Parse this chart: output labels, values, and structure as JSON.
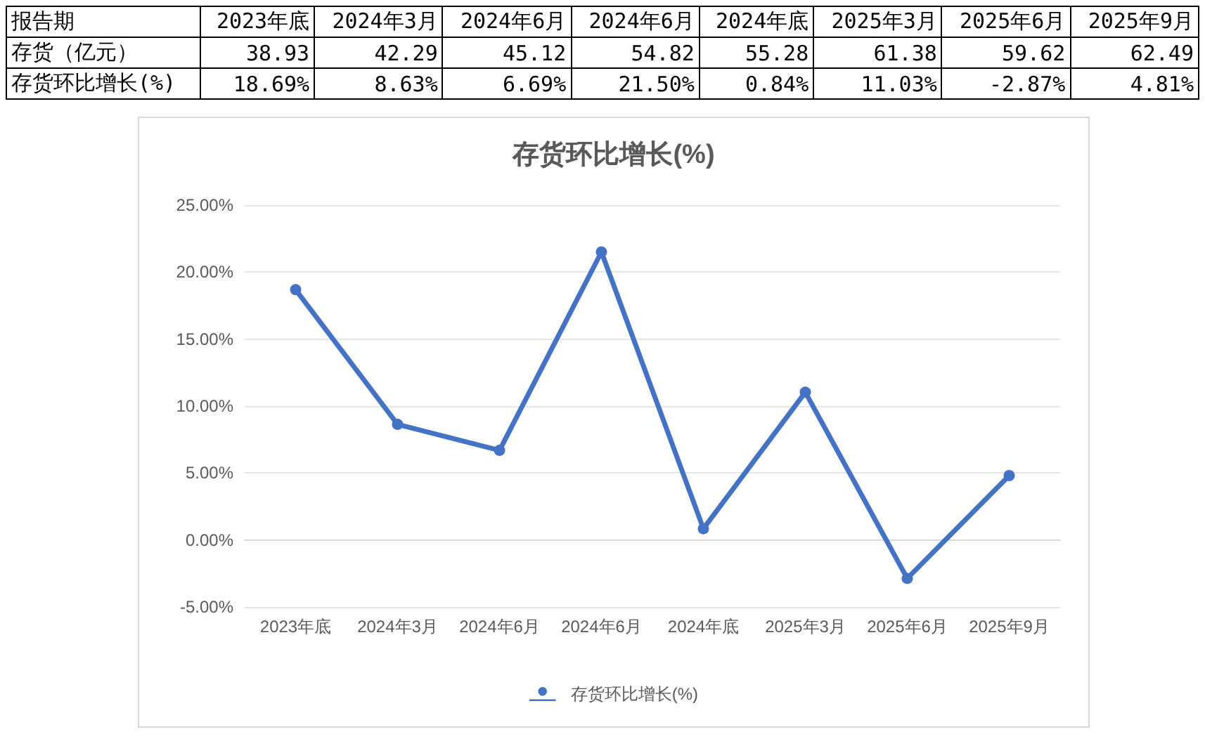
{
  "chart_data": [
    {
      "type": "other",
      "xlabel": "报告期",
      "categories": [
        "2023年底",
        "2024年3月",
        "2024年6月",
        "2024年6月",
        "2024年底",
        "2025年3月",
        "2025年6月",
        "2025年9月"
      ],
      "series": [
        {
          "name": "存货（亿元）",
          "values": [
            38.93,
            42.29,
            45.12,
            54.82,
            55.28,
            61.38,
            59.62,
            62.49
          ],
          "value_labels": [
            "38.93",
            "42.29",
            "45.12",
            "54.82",
            "55.28",
            "61.38",
            "59.62",
            "62.49"
          ]
        },
        {
          "name": "存货环比增长(%)",
          "values": [
            18.69,
            8.63,
            6.69,
            21.5,
            0.84,
            11.03,
            -2.87,
            4.81
          ],
          "value_labels": [
            "18.69%",
            "8.63%",
            "6.69%",
            "21.50%",
            "0.84%",
            "11.03%",
            "-2.87%",
            "4.81%"
          ]
        }
      ]
    },
    {
      "type": "line",
      "title": "存货环比增长(%)",
      "categories": [
        "2023年底",
        "2024年3月",
        "2024年6月",
        "2024年6月",
        "2024年底",
        "2025年3月",
        "2025年6月",
        "2025年9月"
      ],
      "series": [
        {
          "name": "存货环比增长(%)",
          "color": "#4472c4",
          "values": [
            18.69,
            8.63,
            6.69,
            21.5,
            0.84,
            11.03,
            -2.87,
            4.81
          ]
        }
      ],
      "ylim": [
        -5,
        25
      ],
      "yticks": [
        {
          "value": -5,
          "label": "-5.00%"
        },
        {
          "value": 0,
          "label": "0.00%"
        },
        {
          "value": 5,
          "label": "5.00%"
        },
        {
          "value": 10,
          "label": "10.00%"
        },
        {
          "value": 15,
          "label": "15.00%"
        },
        {
          "value": 20,
          "label": "20.00%"
        },
        {
          "value": 25,
          "label": "25.00%"
        }
      ],
      "grid": "y",
      "legend": "bottom",
      "marker": "circle",
      "line_style": "solid"
    }
  ]
}
